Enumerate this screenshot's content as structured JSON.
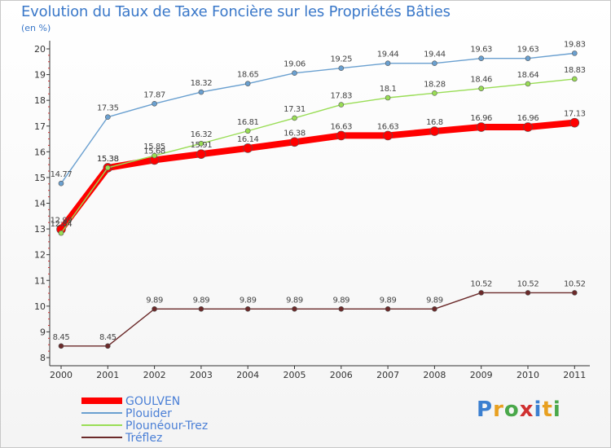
{
  "title": "Evolution du Taux de Taxe Foncière sur les Propriétés Bâties",
  "unit": "(en %)",
  "logo": "Proxiti",
  "chart_data": {
    "type": "line",
    "title": "Evolution du Taux de Taxe Foncière sur les Propriétés Bâties",
    "ylabel": "(en %)",
    "xlabel": "",
    "ylim": [
      8,
      20
    ],
    "yticks": [
      8,
      9,
      10,
      11,
      12,
      13,
      14,
      15,
      16,
      17,
      18,
      19,
      20
    ],
    "x": [
      "2000",
      "2001",
      "2002",
      "2003",
      "2004",
      "2005",
      "2006",
      "2007",
      "2008",
      "2009",
      "2010",
      "2011"
    ],
    "grid": false,
    "legend_position": "bottom-left",
    "series": [
      {
        "name": "GOULVEN",
        "color": "#ff0000",
        "values": [
          12.99,
          15.38,
          15.68,
          15.91,
          16.14,
          16.38,
          16.63,
          16.63,
          16.8,
          16.96,
          16.96,
          17.13
        ],
        "labels": [
          "12.99",
          "15.38",
          "15.68",
          "15.91",
          "16.14",
          "16.38",
          "16.63",
          "16.63",
          "16.8",
          "16.96",
          "16.96",
          "17.13"
        ]
      },
      {
        "name": "Plouider",
        "color": "#6aa0d0",
        "values": [
          14.77,
          17.35,
          17.87,
          18.32,
          18.65,
          19.06,
          19.25,
          19.44,
          19.44,
          19.63,
          19.63,
          19.83
        ],
        "labels": [
          "14.77",
          "17.35",
          "17.87",
          "18.32",
          "18.65",
          "19.06",
          "19.25",
          "19.44",
          "19.44",
          "19.63",
          "19.63",
          "19.83"
        ]
      },
      {
        "name": "Plounéour-Trez",
        "color": "#99dd55",
        "values": [
          12.84,
          15.38,
          15.85,
          16.32,
          16.81,
          17.31,
          17.83,
          18.1,
          18.28,
          18.46,
          18.64,
          18.83
        ],
        "labels": [
          "12.84",
          "15.38",
          "15.85",
          "16.32",
          "16.81",
          "17.31",
          "17.83",
          "18.1",
          "18.28",
          "18.46",
          "18.64",
          "18.83"
        ]
      },
      {
        "name": "Tréflez",
        "color": "#6b2a2a",
        "values": [
          8.45,
          8.45,
          9.89,
          9.89,
          9.89,
          9.89,
          9.89,
          9.89,
          9.89,
          10.52,
          10.52,
          10.52
        ],
        "labels": [
          "8.45",
          "8.45",
          "9.89",
          "9.89",
          "9.89",
          "9.89",
          "9.89",
          "9.89",
          "9.89",
          "10.52",
          "10.52",
          "10.52"
        ]
      }
    ]
  }
}
